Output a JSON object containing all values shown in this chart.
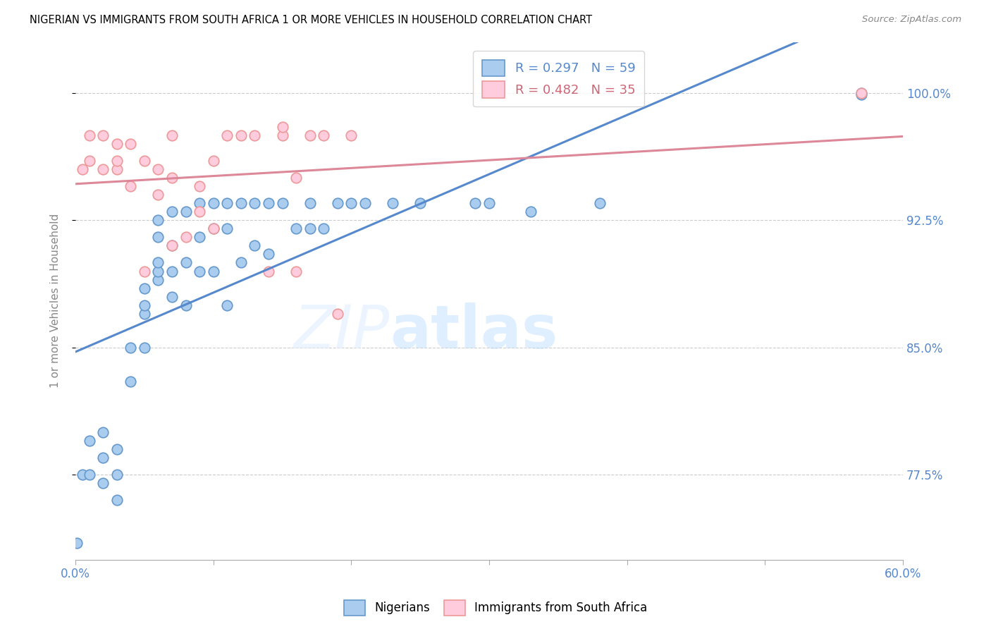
{
  "title": "NIGERIAN VS IMMIGRANTS FROM SOUTH AFRICA 1 OR MORE VEHICLES IN HOUSEHOLD CORRELATION CHART",
  "source": "Source: ZipAtlas.com",
  "ylabel": "1 or more Vehicles in Household",
  "ytick_labels": [
    "77.5%",
    "85.0%",
    "92.5%",
    "100.0%"
  ],
  "ytick_values": [
    0.775,
    0.85,
    0.925,
    1.0
  ],
  "xmin": 0.0,
  "xmax": 0.6,
  "ymin": 0.725,
  "ymax": 1.03,
  "legend_blue_label": "R = 0.297   N = 59",
  "legend_pink_label": "R = 0.482   N = 35",
  "nigerians_label": "Nigerians",
  "immigrants_label": "Immigrants from South Africa",
  "blue_line_color": "#5588CC",
  "pink_line_color": "#DD8899",
  "blue_scatter_face": "#AACCEE",
  "blue_scatter_edge": "#6699CC",
  "pink_scatter_face": "#FFCCDD",
  "pink_scatter_edge": "#EE9999",
  "watermark_zip": "ZIP",
  "watermark_atlas": "atlas",
  "blue_x": [
    0.001,
    0.005,
    0.01,
    0.01,
    0.02,
    0.02,
    0.02,
    0.03,
    0.03,
    0.03,
    0.04,
    0.04,
    0.05,
    0.05,
    0.05,
    0.05,
    0.06,
    0.06,
    0.06,
    0.06,
    0.06,
    0.07,
    0.07,
    0.07,
    0.07,
    0.08,
    0.08,
    0.08,
    0.09,
    0.09,
    0.09,
    0.1,
    0.1,
    0.1,
    0.11,
    0.11,
    0.11,
    0.12,
    0.12,
    0.13,
    0.13,
    0.14,
    0.14,
    0.15,
    0.16,
    0.17,
    0.17,
    0.18,
    0.19,
    0.2,
    0.21,
    0.23,
    0.25,
    0.29,
    0.3,
    0.33,
    0.38,
    0.57,
    0.57
  ],
  "blue_y": [
    0.735,
    0.775,
    0.775,
    0.795,
    0.77,
    0.785,
    0.8,
    0.76,
    0.775,
    0.79,
    0.83,
    0.85,
    0.85,
    0.87,
    0.875,
    0.885,
    0.89,
    0.895,
    0.9,
    0.915,
    0.925,
    0.88,
    0.895,
    0.91,
    0.93,
    0.875,
    0.9,
    0.93,
    0.895,
    0.915,
    0.935,
    0.895,
    0.92,
    0.935,
    0.875,
    0.92,
    0.935,
    0.9,
    0.935,
    0.91,
    0.935,
    0.905,
    0.935,
    0.935,
    0.92,
    0.92,
    0.935,
    0.92,
    0.935,
    0.935,
    0.935,
    0.935,
    0.935,
    0.935,
    0.935,
    0.93,
    0.935,
    0.999,
    1.0
  ],
  "pink_x": [
    0.005,
    0.01,
    0.01,
    0.02,
    0.02,
    0.03,
    0.03,
    0.03,
    0.04,
    0.04,
    0.05,
    0.05,
    0.06,
    0.06,
    0.07,
    0.07,
    0.07,
    0.08,
    0.09,
    0.09,
    0.1,
    0.1,
    0.11,
    0.12,
    0.13,
    0.14,
    0.15,
    0.15,
    0.16,
    0.16,
    0.17,
    0.18,
    0.19,
    0.2,
    0.57
  ],
  "pink_y": [
    0.955,
    0.96,
    0.975,
    0.955,
    0.975,
    0.955,
    0.96,
    0.97,
    0.945,
    0.97,
    0.895,
    0.96,
    0.94,
    0.955,
    0.91,
    0.95,
    0.975,
    0.915,
    0.93,
    0.945,
    0.92,
    0.96,
    0.975,
    0.975,
    0.975,
    0.895,
    0.975,
    0.98,
    0.895,
    0.95,
    0.975,
    0.975,
    0.87,
    0.975,
    1.0
  ],
  "blue_R": 0.297,
  "pink_R": 0.482,
  "blue_N": 59,
  "pink_N": 35
}
